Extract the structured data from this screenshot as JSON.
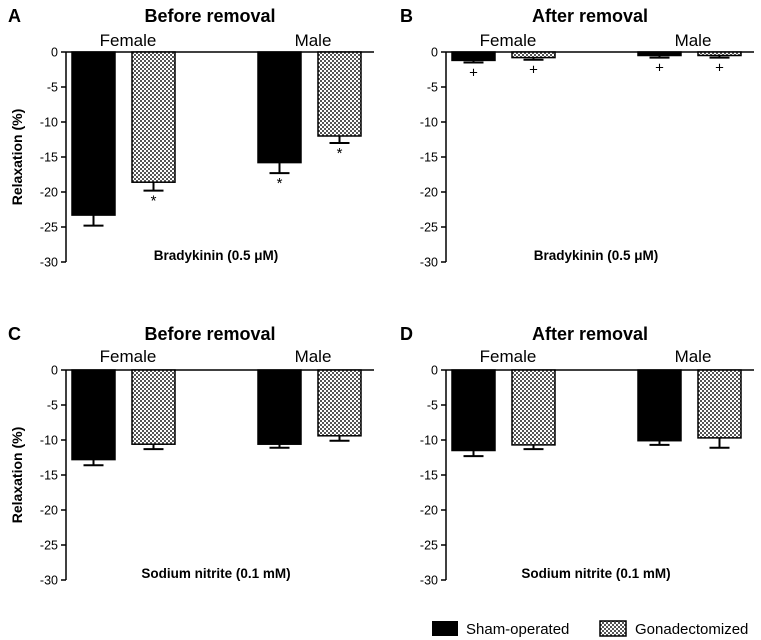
{
  "legend": {
    "items": [
      {
        "label": "Sham-operated",
        "pattern": "solid",
        "color": "#000000"
      },
      {
        "label": "Gonadectomized",
        "pattern": "checker",
        "color": "#555555"
      }
    ]
  },
  "chart_data": [
    {
      "type": "bar",
      "panel": "A",
      "title": "Before removal",
      "xlabel": "Bradykinin (0.5 μM)",
      "ylabel": "Relaxation (%)",
      "ylim": [
        -30,
        0
      ],
      "yticks": [
        "0",
        "-5",
        "-10",
        "-15",
        "-20",
        "-25",
        "-30"
      ],
      "categories": [
        "Female",
        "Male"
      ],
      "series": [
        {
          "name": "Sham-operated",
          "values": [
            -23.3,
            -15.8
          ],
          "errors": [
            1.5,
            1.5
          ],
          "markers": [
            "",
            "*"
          ]
        },
        {
          "name": "Gonadectomized",
          "values": [
            -18.6,
            -12.0
          ],
          "errors": [
            1.2,
            1.0
          ],
          "markers": [
            "*",
            "*"
          ]
        }
      ]
    },
    {
      "type": "bar",
      "panel": "B",
      "title": "After removal",
      "xlabel": "Bradykinin (0.5 μM)",
      "ylabel": "",
      "ylim": [
        -30,
        0
      ],
      "yticks": [
        "0",
        "-5",
        "-10",
        "-15",
        "-20",
        "-25",
        "-30"
      ],
      "categories": [
        "Female",
        "Male"
      ],
      "series": [
        {
          "name": "Sham-operated",
          "values": [
            -1.2,
            -0.5
          ],
          "errors": [
            0.3,
            0.3
          ],
          "markers": [
            "+",
            "+"
          ]
        },
        {
          "name": "Gonadectomized",
          "values": [
            -0.8,
            -0.5
          ],
          "errors": [
            0.3,
            0.3
          ],
          "markers": [
            "+",
            "+"
          ]
        }
      ]
    },
    {
      "type": "bar",
      "panel": "C",
      "title": "Before removal",
      "xlabel": "Sodium nitrite (0.1 mM)",
      "ylabel": "Relaxation (%)",
      "ylim": [
        -30,
        0
      ],
      "yticks": [
        "0",
        "-5",
        "-10",
        "-15",
        "-20",
        "-25",
        "-30"
      ],
      "categories": [
        "Female",
        "Male"
      ],
      "series": [
        {
          "name": "Sham-operated",
          "values": [
            -12.8,
            -10.6
          ],
          "errors": [
            0.8,
            0.5
          ],
          "markers": [
            "",
            ""
          ]
        },
        {
          "name": "Gonadectomized",
          "values": [
            -10.6,
            -9.4
          ],
          "errors": [
            0.7,
            0.7
          ],
          "markers": [
            "",
            ""
          ]
        }
      ]
    },
    {
      "type": "bar",
      "panel": "D",
      "title": "After removal",
      "xlabel": "Sodium nitrite (0.1 mM)",
      "ylabel": "",
      "ylim": [
        -30,
        0
      ],
      "yticks": [
        "0",
        "-5",
        "-10",
        "-15",
        "-20",
        "-25",
        "-30"
      ],
      "categories": [
        "Female",
        "Male"
      ],
      "series": [
        {
          "name": "Sham-operated",
          "values": [
            -11.5,
            -10.1
          ],
          "errors": [
            0.8,
            0.6
          ],
          "markers": [
            "",
            ""
          ]
        },
        {
          "name": "Gonadectomized",
          "values": [
            -10.7,
            -9.7
          ],
          "errors": [
            0.6,
            1.4
          ],
          "markers": [
            "",
            ""
          ]
        }
      ]
    }
  ]
}
